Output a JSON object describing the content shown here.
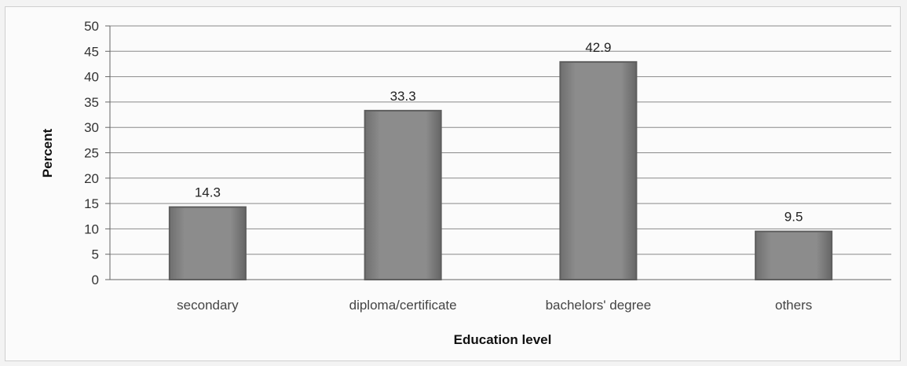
{
  "chart_data": {
    "type": "bar",
    "categories": [
      "secondary",
      "diploma/certificate",
      "bachelors' degree",
      "others"
    ],
    "values": [
      14.3,
      33.3,
      42.9,
      9.5
    ],
    "data_labels": [
      "14.3",
      "33.3",
      "42.9",
      "9.5"
    ],
    "title": "",
    "xlabel": "Education level",
    "ylabel": "Percent",
    "ylim": [
      0,
      50
    ],
    "yticks": [
      0,
      5,
      10,
      15,
      20,
      25,
      30,
      35,
      40,
      45,
      50
    ],
    "grid": true,
    "legend": "none",
    "bar_color": "#8c8c8c",
    "bar_edge_color": "#5e5e5e"
  }
}
